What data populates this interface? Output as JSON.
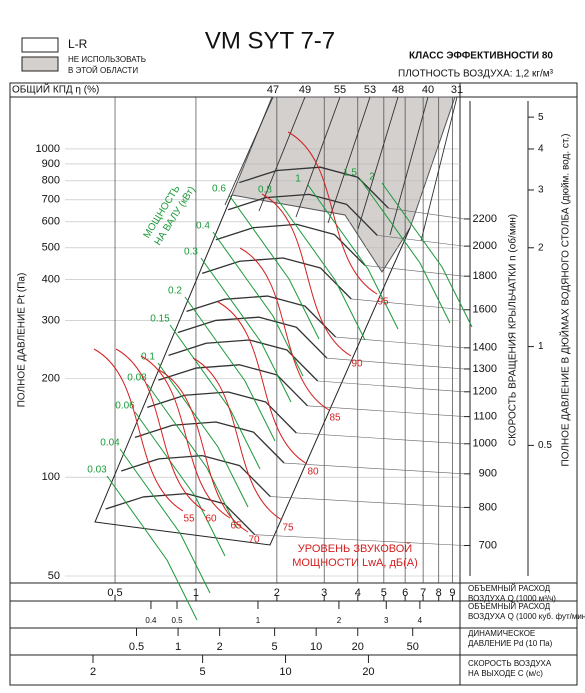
{
  "chart_data": {
    "type": "fan-chart",
    "title": "VM SYT 7-7",
    "legend": [
      {
        "label": [
          "L-R"
        ],
        "color": "#ffffff"
      },
      {
        "label": [
          "НЕ ИСПОЛЬЗОВАТЬ",
          "В ЭТОЙ ОБЛАСТИ"
        ],
        "color": "#d3d0ce"
      }
    ],
    "efficiency_class": "КЛАСС ЭФФЕКТИВНОСТИ 80",
    "air_density": "ПЛОТНОСТЬ ВОЗДУХА: 1,2 кг/м³",
    "efficiency": {
      "label": "ОБЩИЙ КПД η (%)",
      "values": [
        47,
        49,
        55,
        53,
        48,
        40,
        31
      ]
    },
    "ylabel": "ПОЛНОЕ ДАВЛЕНИЕ Pt (Па)",
    "ylim": [
      50,
      1400
    ],
    "yticks": [
      50,
      100,
      200,
      300,
      400,
      500,
      600,
      700,
      800,
      900,
      1000
    ],
    "log_scale": true,
    "grid": true,
    "speed_axis": {
      "label": "СКОРОСТЬ ВРАЩЕНИЯ КРЫЛЬЧАТКИ n (об/мин)",
      "lim": [
        629,
        3327
      ],
      "ticks": [
        700,
        800,
        900,
        1000,
        1100,
        1200,
        1300,
        1400,
        1600,
        1800,
        2000,
        2200
      ],
      "color": "#333333"
    },
    "y2label": "ПОЛНОЕ ДАВЛЕНИЕ В ДЮЙМАХ ВОДЯНОГО СТОЛБА (дюйм. вод. ст.)",
    "y2lim": [
      0.2,
      5.6
    ],
    "y2ticks": [
      0.5,
      1,
      2,
      3,
      4,
      5
    ],
    "x_axes": [
      {
        "label": [
          "ОБЪЕМНЫЙ РАСХОД",
          "ВОЗДУХА Q (1000 м³/ч)"
        ],
        "xlim": [
          0.34,
          9.6
        ],
        "xticks": [
          0.5,
          1,
          2,
          3,
          4,
          5,
          6,
          7,
          8,
          9
        ]
      },
      {
        "label": [
          "ОБЪЕМНЫЙ РАСХОД",
          "ВОЗДУХА Q (1000 куб. фут/мин)"
        ],
        "xlim": [
          0.2,
          5.64
        ],
        "xticks": [
          0.4,
          0.5,
          1,
          2,
          3,
          4
        ]
      },
      {
        "label": [
          "ДИНАМИЧЕСКОЕ",
          "ДАВЛЕНИЕ Pd (10 Па)"
        ],
        "xlim": [
          0.165,
          110
        ],
        "xticks": [
          0.5,
          1,
          2,
          5,
          10,
          20,
          50
        ]
      },
      {
        "label": [
          "СКОРОСТЬ ВОЗДУХА",
          "НА ВЫХОДЕ C (м/с)"
        ],
        "xlim": [
          1.65,
          43
        ],
        "xticks": [
          2,
          5,
          10,
          20
        ]
      }
    ],
    "power": {
      "label": [
        "МОЩНОСТЬ",
        "НА ВАЛУ (кВт)"
      ],
      "color": "#1a9a3a",
      "values": [
        0.03,
        0.04,
        0.06,
        0.08,
        0.1,
        0.15,
        0.2,
        0.3,
        0.4,
        0.6,
        0.8,
        1,
        1.5,
        2
      ]
    },
    "sound": {
      "label": [
        "УРОВЕНЬ ЗВУКОВОЙ",
        "МОЩНОСТИ LwA, дБ(A)"
      ],
      "color": "#d42020",
      "values": [
        55,
        60,
        65,
        70,
        75,
        80,
        85,
        90,
        95
      ]
    }
  }
}
